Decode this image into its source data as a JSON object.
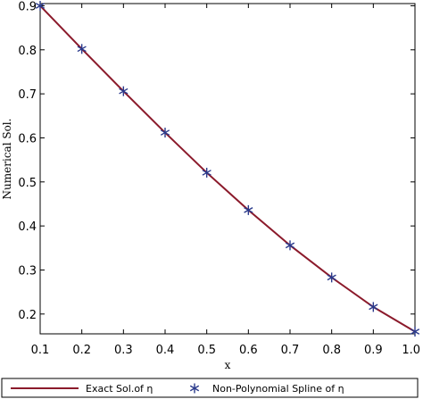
{
  "chart_data": {
    "type": "line",
    "title": "",
    "xlabel": "x",
    "ylabel": "Numerical Sol.",
    "xlim": [
      0.1,
      1.0
    ],
    "ylim": [
      0.155,
      0.905
    ],
    "xticks": [
      "0.1",
      "0.2",
      "0.3",
      "0.4",
      "0.5",
      "0.6",
      "0.7",
      "0.8",
      "0.9",
      "1.0"
    ],
    "yticks": [
      "0.2",
      "0.3",
      "0.4",
      "0.5",
      "0.6",
      "0.7",
      "0.8",
      "0.9"
    ],
    "grid": false,
    "legend_position": "bottom",
    "series": [
      {
        "name": "Exact Sol.of η",
        "style": "line",
        "color": "#8b1a2b",
        "x": [
          0.1,
          0.2,
          0.3,
          0.4,
          0.5,
          0.6,
          0.7,
          0.8,
          0.9,
          1.0
        ],
        "y": [
          0.9,
          0.802,
          0.706,
          0.612,
          0.521,
          0.436,
          0.356,
          0.283,
          0.216,
          0.16
        ]
      },
      {
        "name": "Non-Polynomial Spline of  η",
        "style": "markers",
        "marker": "star",
        "color": "#2a3a8c",
        "x": [
          0.1,
          0.2,
          0.3,
          0.4,
          0.5,
          0.6,
          0.7,
          0.8,
          0.9,
          1.0
        ],
        "y": [
          0.9,
          0.802,
          0.706,
          0.612,
          0.521,
          0.436,
          0.356,
          0.283,
          0.216,
          0.16
        ]
      }
    ]
  }
}
